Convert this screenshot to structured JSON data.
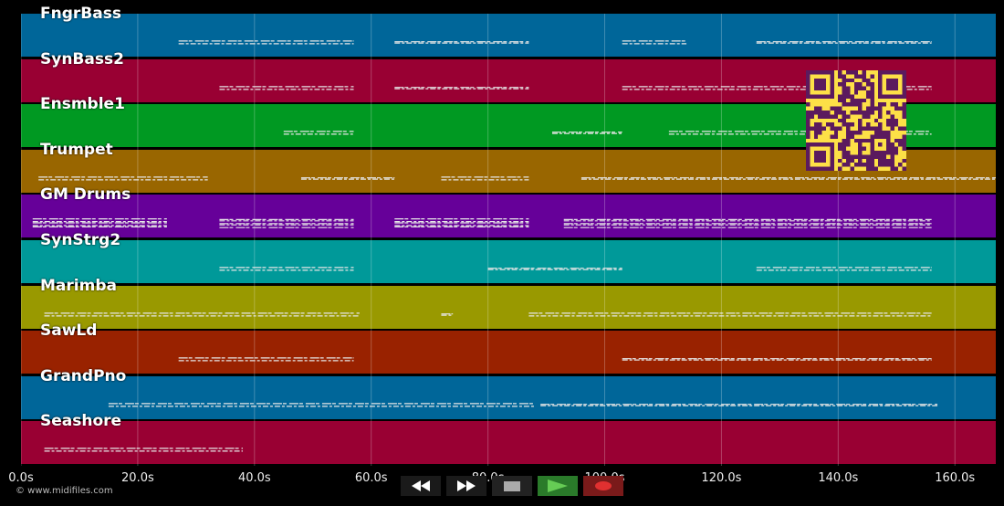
{
  "tracks": [
    {
      "name": "FngrBass",
      "color": "#006699"
    },
    {
      "name": "SynBass2",
      "color": "#990033"
    },
    {
      "name": "Ensmble1",
      "color": "#009922"
    },
    {
      "name": "Trumpet",
      "color": "#996600"
    },
    {
      "name": "GM Drums",
      "color": "#660099"
    },
    {
      "name": "SynStrg2",
      "color": "#009999"
    },
    {
      "name": "Marimba",
      "color": "#999900"
    },
    {
      "name": "SawLd",
      "color": "#992200"
    },
    {
      "name": "GrandPno",
      "color": "#006699"
    },
    {
      "name": "Seashore",
      "color": "#990033"
    }
  ],
  "timeline": {
    "ticks": [
      "0.0s",
      "20.0s",
      "40.0s",
      "60.0s",
      "80.0s",
      "100.0s",
      "120.0s",
      "140.0s",
      "160.0s"
    ],
    "tick_seconds": [
      0,
      20,
      40,
      60,
      80,
      100,
      120,
      140,
      160
    ],
    "end_seconds": 167
  },
  "note_segments": [
    [
      [
        27,
        57
      ],
      [
        64,
        87
      ],
      [
        103,
        114
      ],
      [
        126,
        156
      ]
    ],
    [
      [
        34,
        57
      ],
      [
        64,
        87
      ],
      [
        103,
        156
      ]
    ],
    [
      [
        45,
        57
      ],
      [
        91,
        103
      ],
      [
        111,
        156
      ]
    ],
    [
      [
        3,
        32
      ],
      [
        48,
        64
      ],
      [
        72,
        87
      ],
      [
        96,
        167
      ]
    ],
    [
      [
        2,
        25
      ],
      [
        34,
        57
      ],
      [
        64,
        87
      ],
      [
        93,
        156
      ]
    ],
    [
      [
        34,
        57
      ],
      [
        80,
        103
      ],
      [
        126,
        156
      ]
    ],
    [
      [
        4,
        58
      ],
      [
        72,
        74
      ],
      [
        87,
        156
      ]
    ],
    [
      [
        27,
        57
      ],
      [
        103,
        156
      ]
    ],
    [
      [
        15,
        88
      ],
      [
        89,
        157
      ]
    ],
    [
      [
        4,
        38
      ]
    ]
  ],
  "footer": {
    "copyright": "© www.midifiles.com"
  },
  "controls": {
    "rewind_icon": "rewind-icon",
    "fast_forward_icon": "fast-forward-icon",
    "stop_icon": "stop-icon",
    "play_icon": "play-icon",
    "record_icon": "record-icon",
    "play_color": "#2a7a2a",
    "record_color": "#7a1a1a"
  },
  "qr_code": {
    "color": "#5b1a5e",
    "background": "#fde047"
  }
}
